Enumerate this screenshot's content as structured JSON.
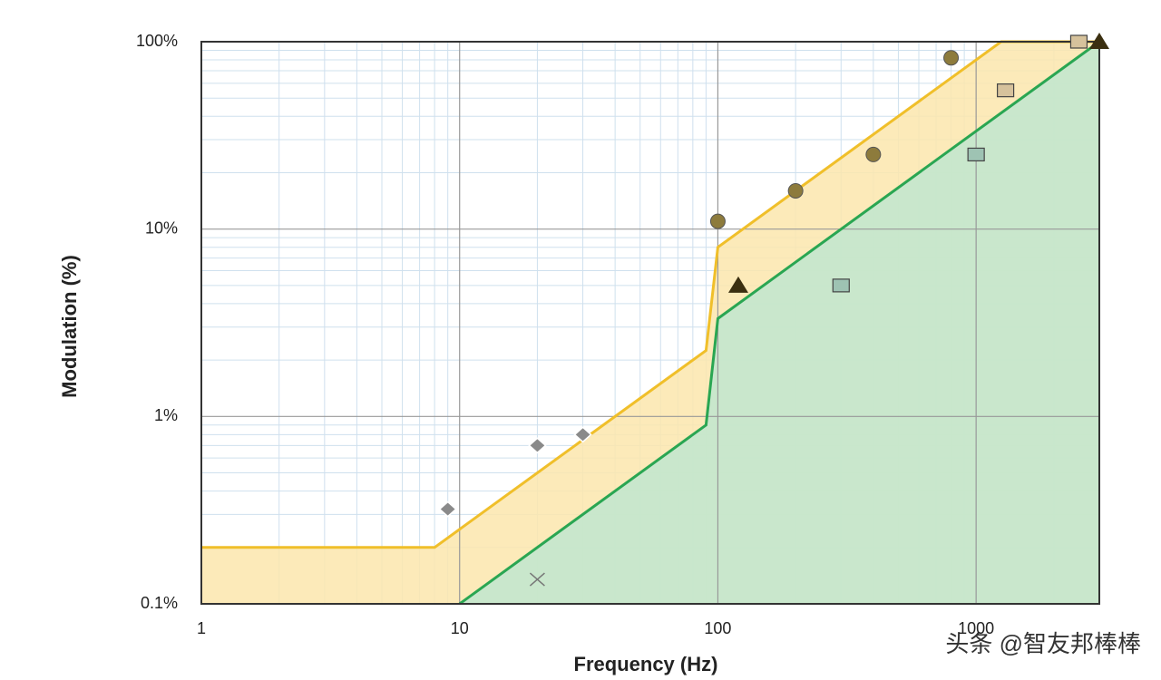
{
  "chart_data": {
    "type": "line",
    "x_label": "Frequency (Hz)",
    "y_label": "Modulation (%)",
    "watermark": "头条 @智友邦棒棒",
    "xlim": [
      1,
      3000
    ],
    "ylim": [
      0.1,
      100
    ],
    "log_x": true,
    "log_y": true,
    "grid": true,
    "minor_grid": true,
    "xticks": [
      1,
      10,
      100,
      1000
    ],
    "yticks": [
      {
        "value": 0.1,
        "label": "0.1%"
      },
      {
        "value": 1,
        "label": "1%"
      },
      {
        "value": 10,
        "label": "10%"
      },
      {
        "value": 100,
        "label": "100%"
      }
    ],
    "series": [
      {
        "color": "#f0bf2a",
        "fill": "#fbe6ad",
        "x": [
          1,
          8,
          90,
          100,
          1250,
          3000
        ],
        "values": [
          0.2,
          0.2,
          2.25,
          8,
          100,
          100
        ]
      },
      {
        "color": "#2aa652",
        "fill": "#bfe6cf",
        "x": [
          10,
          90,
          100,
          3000
        ],
        "values": [
          0.1,
          0.9,
          3.33,
          100
        ]
      }
    ],
    "points": [
      {
        "marker": "diamond",
        "color": "#8a8a8a",
        "x": [
          9,
          20,
          30
        ],
        "values": [
          0.32,
          0.7,
          0.8
        ]
      },
      {
        "marker": "cross",
        "color": "#777777",
        "x": [
          20
        ],
        "values": [
          0.135
        ]
      },
      {
        "marker": "circle",
        "color": "#8d7b3c",
        "x": [
          100,
          200,
          400,
          800
        ],
        "values": [
          11,
          16,
          25,
          82
        ]
      },
      {
        "marker": "triangle",
        "color": "#3b2f10",
        "x": [
          120,
          3000
        ],
        "values": [
          5,
          100
        ]
      },
      {
        "marker": "square",
        "color": "#9ec3b3",
        "x": [
          300,
          1000
        ],
        "values": [
          5,
          25
        ]
      },
      {
        "marker": "square",
        "color": "#d6c29c",
        "x": [
          1300,
          2500
        ],
        "values": [
          55,
          100
        ]
      }
    ]
  }
}
